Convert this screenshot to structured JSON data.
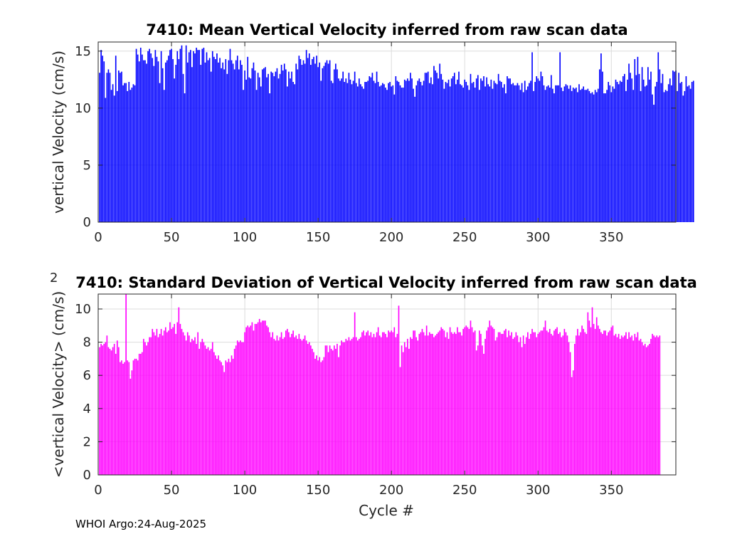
{
  "footer": "WHOI Argo:24-Aug-2025",
  "chart_data": [
    {
      "type": "bar",
      "title": "7410: Mean Vertical Velocity inferred from raw scan data",
      "xlabel": "",
      "ylabel": "vertical Velocity (cm/s)",
      "xlim": [
        0,
        394
      ],
      "ylim": [
        0,
        15.8
      ],
      "xticks": [
        0,
        50,
        100,
        150,
        200,
        250,
        300,
        350
      ],
      "yticks": [
        0,
        5,
        10,
        15
      ],
      "grid": true,
      "color": "#0000ff",
      "series": [
        {
          "name": "mean vertical velocity",
          "x_start": 1,
          "step": 1,
          "values": [
            13.1,
            15.1,
            14.6,
            14.1,
            10.9,
            13.1,
            13.4,
            13.1,
            11.6,
            12.1,
            11.1,
            14.6,
            11.5,
            13.3,
            13.1,
            13.2,
            12.0,
            12.2,
            12.2,
            11.5,
            12.3,
            11.6,
            11.8,
            12.1,
            12.0,
            15.2,
            14.7,
            14.1,
            15.3,
            14.7,
            14.2,
            14.2,
            13.9,
            15.0,
            15.2,
            14.8,
            14.4,
            13.7,
            15.1,
            14.5,
            14.1,
            12.2,
            15.0,
            13.5,
            11.6,
            14.0,
            14.2,
            14.6,
            15.1,
            15.2,
            14.3,
            12.6,
            13.8,
            15.0,
            14.3,
            15.2,
            15.5,
            13.0,
            11.3,
            15.5,
            14.0,
            14.9,
            15.1,
            13.6,
            15.0,
            14.8,
            15.3,
            15.1,
            15.1,
            13.8,
            15.2,
            15.3,
            14.0,
            14.9,
            14.2,
            14.4,
            13.2,
            15.0,
            14.5,
            14.3,
            14.8,
            14.0,
            14.4,
            13.5,
            14.0,
            13.4,
            14.3,
            13.0,
            14.2,
            15.2,
            14.2,
            13.9,
            13.4,
            14.2,
            14.6,
            13.4,
            14.2,
            13.8,
            11.6,
            13.3,
            12.5,
            14.5,
            12.7,
            12.6,
            13.5,
            14.0,
            13.3,
            11.6,
            13.1,
            12.7,
            11.9,
            13.4,
            13.5,
            13.6,
            12.7,
            13.0,
            11.3,
            13.2,
            13.1,
            12.8,
            13.2,
            13.5,
            12.6,
            13.0,
            13.8,
            13.3,
            13.9,
            13.4,
            11.9,
            13.2,
            12.6,
            13.2,
            12.3,
            12.1,
            13.9,
            13.4,
            14.6,
            14.3,
            13.8,
            14.2,
            13.9,
            15.1,
            14.4,
            14.8,
            13.8,
            14.3,
            14.5,
            13.9,
            14.6,
            13.6,
            14.0,
            12.4,
            13.5,
            13.7,
            14.0,
            14.2,
            13.9,
            14.2,
            12.4,
            12.2,
            13.4,
            13.9,
            13.4,
            12.6,
            12.4,
            12.6,
            13.2,
            12.3,
            12.6,
            12.2,
            13.1,
            12.5,
            12.1,
            12.4,
            13.2,
            12.2,
            11.9,
            12.6,
            12.1,
            11.9,
            11.7,
            12.3,
            12.3,
            12.4,
            12.8,
            12.7,
            13.1,
            12.4,
            12.2,
            13.2,
            12.3,
            11.9,
            12.0,
            12.2,
            12.1,
            11.8,
            11.6,
            12.2,
            12.3,
            11.9,
            12.0,
            11.2,
            12.8,
            12.4,
            12.3,
            12.0,
            11.8,
            11.8,
            12.5,
            12.4,
            12.6,
            12.4,
            13.1,
            12.6,
            11.7,
            11.0,
            12.0,
            12.4,
            12.6,
            12.3,
            12.0,
            12.4,
            13.1,
            13.1,
            13.2,
            12.2,
            12.7,
            12.1,
            13.7,
            13.3,
            13.1,
            12.6,
            13.9,
            13.0,
            12.5,
            11.7,
            12.3,
            12.2,
            12.5,
            11.9,
            12.6,
            12.8,
            13.1,
            12.1,
            12.5,
            13.2,
            12.1,
            12.0,
            11.8,
            12.5,
            12.3,
            12.0,
            11.6,
            13.0,
            12.2,
            12.3,
            11.8,
            12.6,
            12.9,
            11.6,
            12.6,
            12.4,
            12.8,
            11.9,
            12.7,
            12.1,
            11.9,
            12.5,
            11.7,
            12.4,
            12.2,
            12.1,
            13.0,
            12.4,
            12.3,
            11.8,
            12.1,
            11.3,
            12.8,
            12.6,
            12.6,
            12.1,
            12.2,
            12.0,
            12.0,
            12.2,
            12.0,
            11.6,
            12.2,
            11.4,
            12.4,
            11.6,
            11.9,
            12.2,
            12.4,
            14.9,
            11.5,
            12.3,
            12.8,
            12.6,
            12.4,
            13.2,
            12.8,
            12.0,
            11.6,
            11.9,
            12.0,
            11.8,
            12.9,
            11.7,
            11.3,
            12.0,
            12.0,
            12.0,
            14.9,
            11.8,
            11.5,
            11.9,
            12.1,
            12.0,
            11.7,
            12.0,
            11.5,
            11.8,
            11.7,
            11.8,
            11.4,
            12.1,
            11.6,
            11.7,
            11.9,
            11.6,
            11.6,
            11.7,
            11.5,
            11.3,
            11.4,
            11.2,
            11.6,
            11.4,
            11.7,
            13.4,
            14.8,
            13.2,
            11.3,
            11.3,
            11.6,
            12.3,
            12.0,
            11.4,
            11.9,
            11.7,
            12.5,
            12.3,
            12.1,
            12.4,
            12.3,
            12.8,
            13.0,
            11.5,
            12.5,
            13.9,
            13.1,
            12.6,
            11.6,
            14.3,
            12.9,
            14.5,
            13.0,
            11.5,
            13.6,
            12.5,
            11.9,
            12.0,
            13.6,
            12.5,
            13.2,
            11.2,
            10.3,
            11.9,
            12.3,
            14.9,
            13.4,
            12.2,
            13.0,
            11.4,
            11.6,
            11.5,
            12.1,
            12.6,
            12.0,
            13.3,
            13.2,
            13.3,
            11.5,
            13.1,
            12.2,
            12.3,
            11.1,
            11.5,
            12.8,
            11.9,
            12.0,
            11.7,
            12.3,
            12.4
          ]
        }
      ]
    },
    {
      "type": "bar",
      "title": "7410: Standard Deviation of Vertical Velocity inferred from raw scan data",
      "xlabel": "Cycle #",
      "ylabel": "<vertical Velocity> (cm/s)",
      "ylabel_exponent": "2",
      "xlim": [
        0,
        394
      ],
      "ylim": [
        0,
        10.9
      ],
      "xticks": [
        0,
        50,
        100,
        150,
        200,
        250,
        300,
        350
      ],
      "yticks": [
        0,
        2,
        4,
        6,
        8,
        10
      ],
      "grid": true,
      "color": "#ff00ff",
      "series": [
        {
          "name": "std of vertical velocity",
          "x_start": 1,
          "step": 1,
          "values": [
            7.7,
            7.9,
            7.8,
            7.9,
            8.0,
            8.4,
            7.7,
            7.6,
            7.5,
            7.7,
            7.9,
            7.3,
            8.1,
            7.7,
            6.8,
            6.9,
            6.7,
            6.8,
            10.9,
            6.9,
            6.8,
            5.8,
            6.3,
            6.9,
            7.0,
            7.0,
            6.9,
            7.3,
            7.3,
            7.4,
            8.2,
            8.0,
            7.8,
            8.0,
            8.3,
            8.3,
            8.8,
            8.6,
            8.4,
            8.8,
            8.3,
            8.5,
            8.8,
            8.4,
            8.7,
            8.9,
            8.6,
            8.7,
            9.2,
            8.8,
            8.9,
            9.1,
            8.5,
            9.2,
            10.1,
            9.1,
            8.8,
            8.6,
            8.4,
            8.1,
            8.6,
            8.4,
            8.0,
            8.2,
            8.1,
            8.3,
            7.9,
            8.6,
            7.6,
            8.0,
            8.2,
            8.0,
            7.8,
            7.6,
            7.7,
            7.5,
            7.6,
            8.0,
            7.4,
            7.2,
            7.0,
            7.2,
            6.9,
            6.8,
            6.6,
            6.2,
            6.9,
            6.8,
            7.0,
            6.8,
            7.2,
            7.0,
            7.6,
            7.8,
            8.1,
            8.0,
            8.1,
            8.0,
            8.0,
            8.6,
            8.9,
            9.0,
            8.9,
            9.0,
            9.2,
            8.7,
            9.1,
            9.1,
            9.2,
            9.4,
            9.2,
            9.3,
            9.3,
            9.3,
            9.0,
            8.9,
            8.6,
            8.3,
            8.6,
            8.2,
            8.1,
            8.4,
            8.1,
            8.3,
            8.6,
            8.2,
            8.3,
            8.7,
            8.8,
            8.6,
            8.3,
            8.5,
            8.7,
            8.3,
            8.4,
            8.2,
            8.5,
            8.2,
            8.1,
            8.2,
            8.4,
            8.1,
            7.9,
            8.0,
            7.8,
            7.6,
            7.4,
            7.0,
            7.2,
            6.9,
            7.1,
            6.8,
            6.9,
            7.1,
            7.8,
            7.8,
            7.4,
            7.8,
            7.6,
            7.5,
            7.8,
            7.6,
            7.9,
            7.1,
            7.8,
            8.1,
            8.0,
            8.0,
            8.2,
            8.1,
            8.3,
            8.1,
            8.2,
            8.3,
            9.8,
            8.3,
            8.1,
            8.2,
            8.3,
            8.6,
            8.7,
            8.4,
            8.6,
            8.7,
            8.4,
            8.6,
            8.3,
            8.5,
            8.3,
            8.6,
            8.9,
            8.4,
            8.3,
            8.6,
            8.6,
            8.5,
            8.3,
            8.7,
            8.6,
            8.7,
            8.6,
            8.9,
            8.3,
            8.5,
            10.2,
            6.5,
            7.8,
            7.4,
            8.0,
            7.7,
            8.2,
            7.6,
            8.3,
            8.2,
            8.7,
            8.7,
            8.3,
            8.1,
            8.5,
            8.6,
            8.8,
            8.6,
            8.4,
            9.0,
            8.4,
            8.6,
            8.5,
            8.5,
            8.3,
            8.4,
            8.5,
            8.6,
            8.7,
            8.9,
            8.8,
            8.7,
            8.3,
            8.6,
            8.2,
            8.9,
            8.6,
            8.5,
            8.6,
            8.5,
            8.9,
            8.6,
            8.6,
            8.4,
            8.8,
            8.9,
            9.0,
            8.9,
            8.8,
            9.3,
            8.9,
            8.6,
            8.7,
            7.5,
            7.8,
            8.7,
            8.5,
            7.8,
            7.3,
            8.2,
            8.7,
            8.9,
            9.3,
            9.0,
            8.9,
            8.8,
            8.1,
            8.3,
            8.6,
            8.6,
            8.5,
            8.5,
            8.7,
            8.8,
            8.3,
            8.7,
            8.4,
            8.6,
            8.2,
            8.3,
            8.6,
            8.4,
            8.0,
            8.3,
            7.7,
            8.4,
            7.9,
            8.3,
            8.6,
            8.2,
            8.5,
            8.8,
            8.6,
            8.6,
            8.3,
            8.5,
            8.6,
            8.7,
            8.7,
            8.9,
            9.3,
            8.7,
            8.6,
            8.8,
            8.5,
            8.4,
            8.7,
            8.8,
            8.9,
            8.5,
            8.6,
            8.3,
            8.4,
            8.8,
            8.6,
            8.4,
            8.0,
            7.4,
            5.9,
            6.3,
            7.9,
            8.4,
            8.8,
            8.4,
            8.6,
            9.0,
            8.8,
            8.6,
            8.5,
            9.8,
            9.3,
            8.9,
            10.1,
            9.1,
            8.8,
            9.5,
            9.0,
            8.8,
            8.6,
            8.5,
            8.7,
            8.7,
            8.4,
            8.6,
            8.7,
            8.9,
            9.0,
            8.4,
            8.5,
            8.3,
            8.5,
            8.2,
            8.4,
            8.3,
            8.4,
            8.6,
            8.2,
            8.6,
            8.3,
            8.4,
            8.1,
            8.5,
            8.3,
            8.6,
            8.1,
            8.2,
            8.0,
            7.8,
            7.9,
            7.7,
            7.8,
            7.9,
            8.2,
            8.5,
            8.4,
            8.3,
            8.4,
            8.3,
            8.4
          ]
        }
      ]
    }
  ]
}
